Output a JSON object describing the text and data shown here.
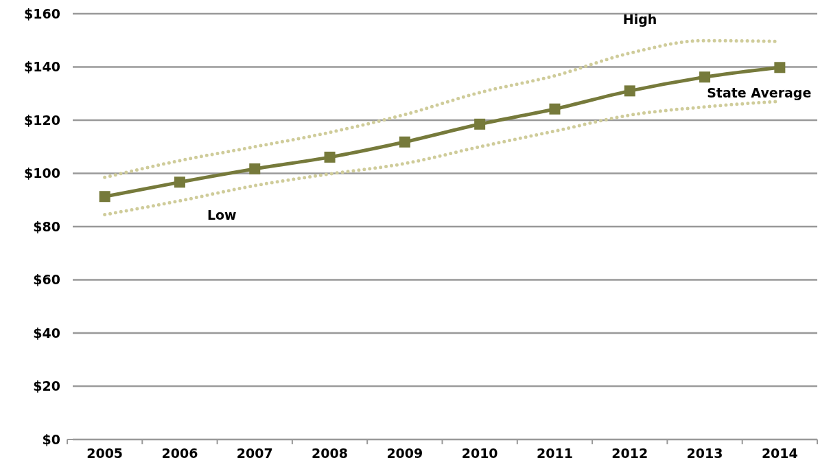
{
  "chart_data": {
    "type": "line",
    "categories": [
      "2005",
      "2006",
      "2007",
      "2008",
      "2009",
      "2010",
      "2011",
      "2012",
      "2013",
      "2014"
    ],
    "series": [
      {
        "name": "High",
        "color": "#cfcc9a",
        "line_style": "dotted",
        "marker": "none",
        "values": [
          98.5,
          104.8,
          110,
          115.4,
          122.1,
          130.4,
          136.7,
          145.2,
          149.9,
          149.6
        ]
      },
      {
        "name": "Low",
        "color": "#cfcc9a",
        "line_style": "dotted",
        "marker": "none",
        "values": [
          84.5,
          89.7,
          95.4,
          99.8,
          103.7,
          110,
          115.9,
          121.9,
          125,
          127.1
        ]
      },
      {
        "name": "State Average",
        "color": "#767a3b",
        "line_style": "solid",
        "marker": "square",
        "values": [
          91.3,
          96.7,
          101.7,
          106.1,
          111.8,
          118.5,
          124.2,
          131,
          136.2,
          139.8
        ]
      }
    ],
    "ylim": [
      0,
      160
    ],
    "yticks": [
      {
        "value": 0,
        "label": "$0"
      },
      {
        "value": 20,
        "label": "$20"
      },
      {
        "value": 40,
        "label": "$40"
      },
      {
        "value": 60,
        "label": "$60"
      },
      {
        "value": 80,
        "label": "$80"
      },
      {
        "value": 100,
        "label": "$100"
      },
      {
        "value": 120,
        "label": "$120"
      },
      {
        "value": 140,
        "label": "$140"
      },
      {
        "value": 160,
        "label": "$160"
      }
    ],
    "grid": "y"
  }
}
